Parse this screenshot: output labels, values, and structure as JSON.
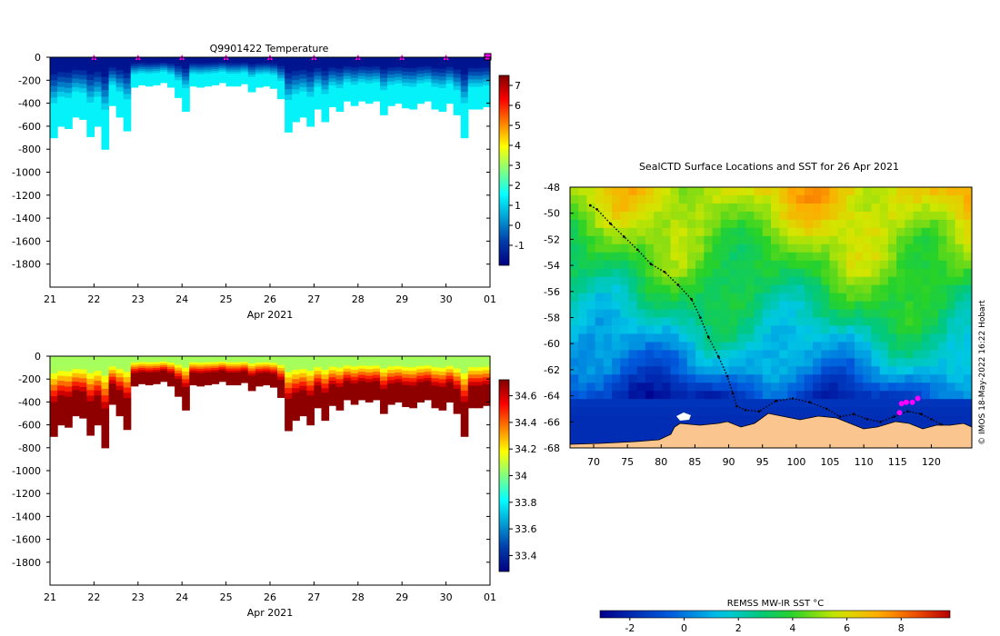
{
  "chart_data": [
    {
      "type": "heatmap",
      "title": "Q9901422  Temperature",
      "xlabel": "Apr 2021",
      "ylabel": "",
      "x_ticks": [
        {
          "day": 21,
          "label": "21"
        },
        {
          "day": 22,
          "label": "22"
        },
        {
          "day": 23,
          "label": "23"
        },
        {
          "day": 24,
          "label": "24"
        },
        {
          "day": 25,
          "label": "25"
        },
        {
          "day": 26,
          "label": "26"
        },
        {
          "day": 27,
          "label": "27"
        },
        {
          "day": 28,
          "label": "28"
        },
        {
          "day": 29,
          "label": "29"
        },
        {
          "day": 30,
          "label": "30"
        },
        {
          "day": 31,
          "label": "01"
        }
      ],
      "xlim": [
        21,
        31
      ],
      "ylim": [
        -2000,
        0
      ],
      "y_ticks": [
        0,
        -200,
        -400,
        -600,
        -800,
        -1000,
        -1200,
        -1400,
        -1600,
        -1800
      ],
      "marker_days": [
        22,
        23,
        24,
        25,
        26,
        27,
        28,
        29,
        30
      ],
      "colorbar": {
        "min": -2,
        "max": 7.5,
        "ticks": [
          -1,
          0,
          1,
          2,
          3,
          4,
          5,
          6,
          7
        ],
        "tick_labels": [
          "-1",
          "0",
          "1",
          "2",
          "3",
          "4",
          "5",
          "6",
          "7"
        ]
      },
      "profile_color_values": {
        "surface": -1.6,
        "deep": 1.4
      },
      "profile_depths_m": [
        -700,
        -600,
        -620,
        -520,
        -540,
        -690,
        -600,
        -800,
        -420,
        -520,
        -640,
        -260,
        -240,
        -250,
        -240,
        -220,
        -260,
        -350,
        -470,
        -250,
        -260,
        -250,
        -240,
        -220,
        -250,
        -250,
        -230,
        -300,
        -260,
        -250,
        -270,
        -360,
        -650,
        -560,
        -520,
        -600,
        -450,
        -560,
        -430,
        -470,
        -380,
        -420,
        -380,
        -400,
        -380,
        -500,
        -420,
        -400,
        -440,
        -450,
        -400,
        -380,
        -450,
        -470,
        -400,
        -500,
        -700,
        -450,
        -450,
        -430
      ]
    },
    {
      "type": "heatmap",
      "title": "",
      "xlabel": "Apr 2021",
      "x_ticks": [
        {
          "day": 21,
          "label": "21"
        },
        {
          "day": 22,
          "label": "22"
        },
        {
          "day": 23,
          "label": "23"
        },
        {
          "day": 24,
          "label": "24"
        },
        {
          "day": 25,
          "label": "25"
        },
        {
          "day": 26,
          "label": "26"
        },
        {
          "day": 27,
          "label": "27"
        },
        {
          "day": 28,
          "label": "28"
        },
        {
          "day": 29,
          "label": "29"
        },
        {
          "day": 30,
          "label": "30"
        },
        {
          "day": 31,
          "label": "01"
        }
      ],
      "xlim": [
        21,
        31
      ],
      "ylim": [
        -2000,
        0
      ],
      "y_ticks": [
        0,
        -200,
        -400,
        -600,
        -800,
        -1000,
        -1200,
        -1400,
        -1600,
        -1800
      ],
      "colorbar": {
        "min": 33.28,
        "max": 34.72,
        "ticks": [
          33.4,
          33.6,
          33.8,
          34.0,
          34.2,
          34.4,
          34.6
        ],
        "tick_labels": [
          "33.4",
          "33.6",
          "33.8",
          "34",
          "34.2",
          "34.4",
          "34.6"
        ]
      },
      "profile_color_values": {
        "surface": 34.05,
        "deep": 34.7
      }
    },
    {
      "type": "heatmap",
      "title": "SealCTD Surface Locations and SST for 26 Apr 2021",
      "xlabel": "",
      "ylabel": "",
      "xlim": [
        66.5,
        126
      ],
      "ylim": [
        -68,
        -48
      ],
      "x_ticks": [
        70,
        75,
        80,
        85,
        90,
        95,
        100,
        105,
        110,
        115,
        120
      ],
      "y_ticks": [
        -48,
        -50,
        -52,
        -54,
        -56,
        -58,
        -60,
        -62,
        -64,
        -66,
        -68
      ],
      "sst_by_latitude": {
        "lat": [
          -48,
          -50,
          -52,
          -54,
          -56,
          -58,
          -60,
          -62,
          -64,
          -65.5,
          -68
        ],
        "sst": [
          6.3,
          5.6,
          4.8,
          4.2,
          3.3,
          2.5,
          1.4,
          0.3,
          -1.5,
          -1.8,
          -1.8
        ]
      },
      "track_lon": [
        69.5,
        70.5,
        72.5,
        74.5,
        76.5,
        78.5,
        80.5,
        82.5,
        84.5,
        85.8,
        87,
        88.5,
        89.8,
        90.6,
        91.2,
        92.5,
        94.5,
        97,
        99.5,
        102,
        104.5,
        106.5,
        108.5,
        110.5,
        112.5,
        114.5,
        116.5,
        118.5,
        120,
        121.5
      ],
      "track_lat": [
        -49.4,
        -49.7,
        -50.8,
        -51.8,
        -52.8,
        -53.9,
        -54.5,
        -55.5,
        -56.6,
        -58,
        -59.5,
        -61,
        -62.5,
        -63.8,
        -64.8,
        -65.1,
        -65.2,
        -64.4,
        -64.2,
        -64.5,
        -65,
        -65.6,
        -65.4,
        -65.8,
        -66,
        -65.6,
        -65.2,
        -65.4,
        -65.8,
        -66.2
      ],
      "latest_positions": [
        {
          "lon": 115.3,
          "lat": -65.3
        },
        {
          "lon": 115.6,
          "lat": -64.6
        },
        {
          "lon": 116.3,
          "lat": -64.5
        },
        {
          "lon": 117.2,
          "lat": -64.5
        },
        {
          "lon": 118.0,
          "lat": -64.2
        }
      ],
      "colorbar": {
        "title": "REMSS MW-IR SST °C",
        "min": -3.1,
        "max": 9.8,
        "ticks": [
          -2,
          0,
          2,
          4,
          6,
          8
        ],
        "tick_labels": [
          "-2",
          "0",
          "2",
          "4",
          "6",
          "8"
        ]
      },
      "credit": "© IMOS 18-May-2022 16:22 Hobart"
    }
  ]
}
